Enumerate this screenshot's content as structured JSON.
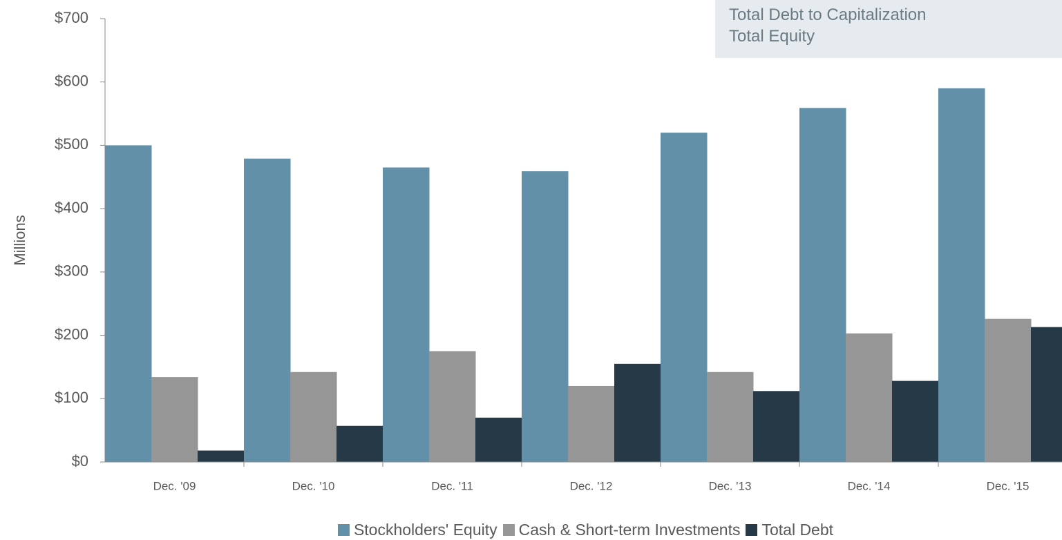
{
  "chart_data": {
    "type": "bar",
    "y_label": "Millions",
    "annotations": [
      "Total Debt to Capitalization",
      "Total Equity"
    ],
    "categories": [
      "Dec. '09",
      "Dec. '10",
      "Dec. '11",
      "Dec. '12",
      "Dec. '13",
      "Dec. '14",
      "Dec. '15"
    ],
    "series": [
      {
        "name": "Stockholders' Equity",
        "color": "#6190a8",
        "values": [
          500,
          479,
          465,
          459,
          520,
          559,
          590
        ]
      },
      {
        "name": "Cash & Short-term Investments",
        "color": "#969696",
        "values": [
          134,
          142,
          175,
          120,
          142,
          203,
          226
        ]
      },
      {
        "name": "Total Debt",
        "color": "#253a46",
        "values": [
          18,
          57,
          70,
          155,
          112,
          128,
          213
        ]
      }
    ],
    "ylim": [
      0,
      700
    ],
    "yticks": [
      {
        "value": 0,
        "label": "$0"
      },
      {
        "value": 100,
        "label": "$100"
      },
      {
        "value": 200,
        "label": "$200"
      },
      {
        "value": 300,
        "label": "$300"
      },
      {
        "value": 400,
        "label": "$400"
      },
      {
        "value": 500,
        "label": "$500"
      },
      {
        "value": 600,
        "label": "$600"
      },
      {
        "value": 700,
        "label": "$700"
      }
    ],
    "grid": false,
    "legend": "bottom"
  }
}
